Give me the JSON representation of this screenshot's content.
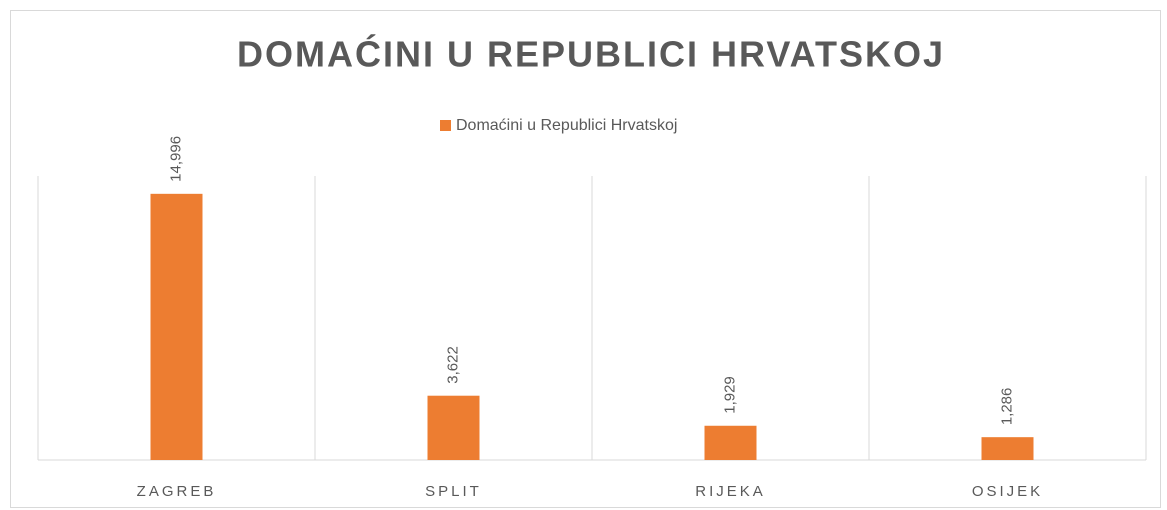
{
  "chart_data": {
    "type": "bar",
    "title": "DOMAĆINI U REPUBLICI HRVATSKOJ",
    "categories": [
      "ZAGREB",
      "SPLIT",
      "RIJEKA",
      "OSIJEK"
    ],
    "series": [
      {
        "name": "Domaćini u Republici Hrvatskoj",
        "color": "#ed7d31",
        "values": [
          14996,
          3622,
          1929,
          1286
        ],
        "value_labels": [
          "14,996",
          "3,622",
          "1,929",
          "1,286"
        ]
      }
    ],
    "ylim": [
      0,
      16000
    ],
    "legend": "top"
  }
}
